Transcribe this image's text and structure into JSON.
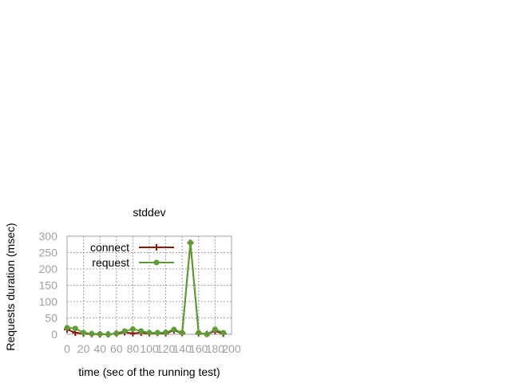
{
  "chart_data": {
    "type": "line",
    "title": "stddev",
    "xlabel": "time (sec of the running test)",
    "ylabel": "Requests duration (msec)",
    "xlim": [
      0,
      200
    ],
    "ylim": [
      0,
      300
    ],
    "xticks": [
      "0",
      "20",
      "40",
      "60",
      "80",
      "100",
      "120",
      "140",
      "160",
      "180",
      "200"
    ],
    "yticks": [
      "0",
      "50",
      "100",
      "150",
      "200",
      "250",
      "300"
    ],
    "grid": true,
    "legend_position": "top-left",
    "series": [
      {
        "name": "connect",
        "color": "#8b1a0e",
        "marker": "plus",
        "x": [
          0,
          10,
          20,
          30,
          40,
          50,
          60,
          70,
          80,
          90,
          100,
          110,
          120,
          130,
          140,
          150,
          160,
          170,
          180,
          190
        ],
        "y": [
          15,
          5,
          2,
          1,
          0,
          0,
          2,
          6,
          3,
          5,
          3,
          4,
          3,
          12,
          4,
          280,
          3,
          1,
          10,
          2
        ]
      },
      {
        "name": "request",
        "color": "#5e9c36",
        "marker": "filled-circle",
        "x": [
          0,
          10,
          20,
          30,
          40,
          50,
          60,
          70,
          80,
          90,
          100,
          110,
          120,
          130,
          140,
          150,
          160,
          170,
          180,
          190
        ],
        "y": [
          20,
          18,
          5,
          2,
          1,
          0,
          3,
          10,
          16,
          10,
          5,
          5,
          6,
          15,
          5,
          280,
          5,
          0,
          15,
          5
        ]
      }
    ]
  }
}
